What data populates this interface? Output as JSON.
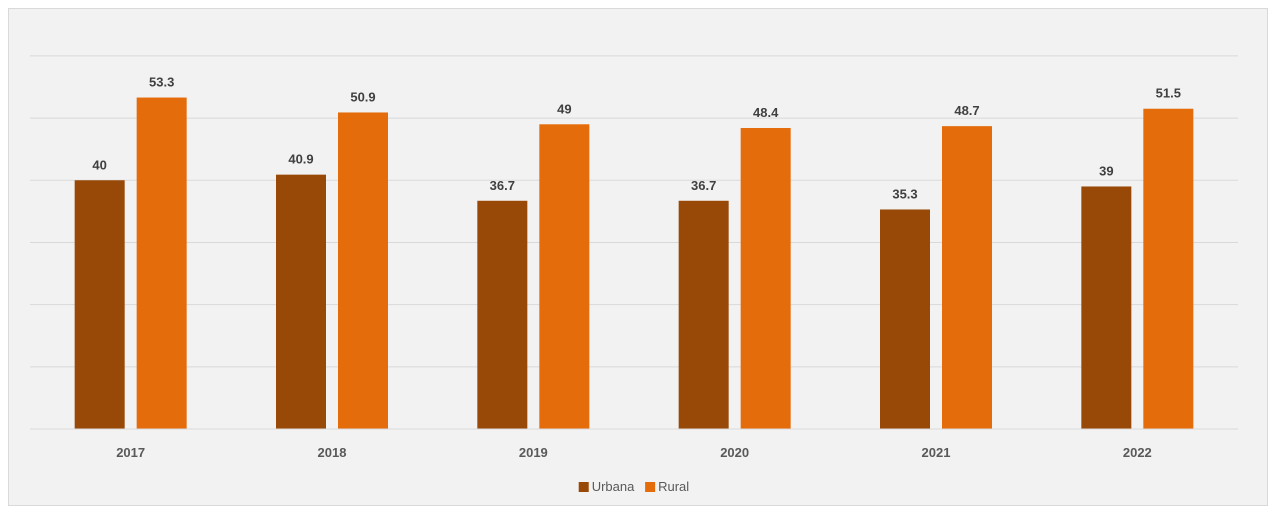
{
  "chart_data": {
    "type": "bar",
    "categories": [
      "2017",
      "2018",
      "2019",
      "2020",
      "2021",
      "2022"
    ],
    "series": [
      {
        "name": "Urbana",
        "color": "#984807",
        "values": [
          40,
          40.9,
          36.7,
          36.7,
          35.3,
          39
        ]
      },
      {
        "name": "Rural",
        "color": "#E46C0A",
        "values": [
          53.3,
          50.9,
          49,
          48.4,
          48.7,
          51.5
        ]
      }
    ],
    "ylim": [
      0,
      64
    ],
    "ygrid_step": 10,
    "grid": true,
    "legend_position": "bottom",
    "title": "",
    "xlabel": "",
    "ylabel": ""
  }
}
